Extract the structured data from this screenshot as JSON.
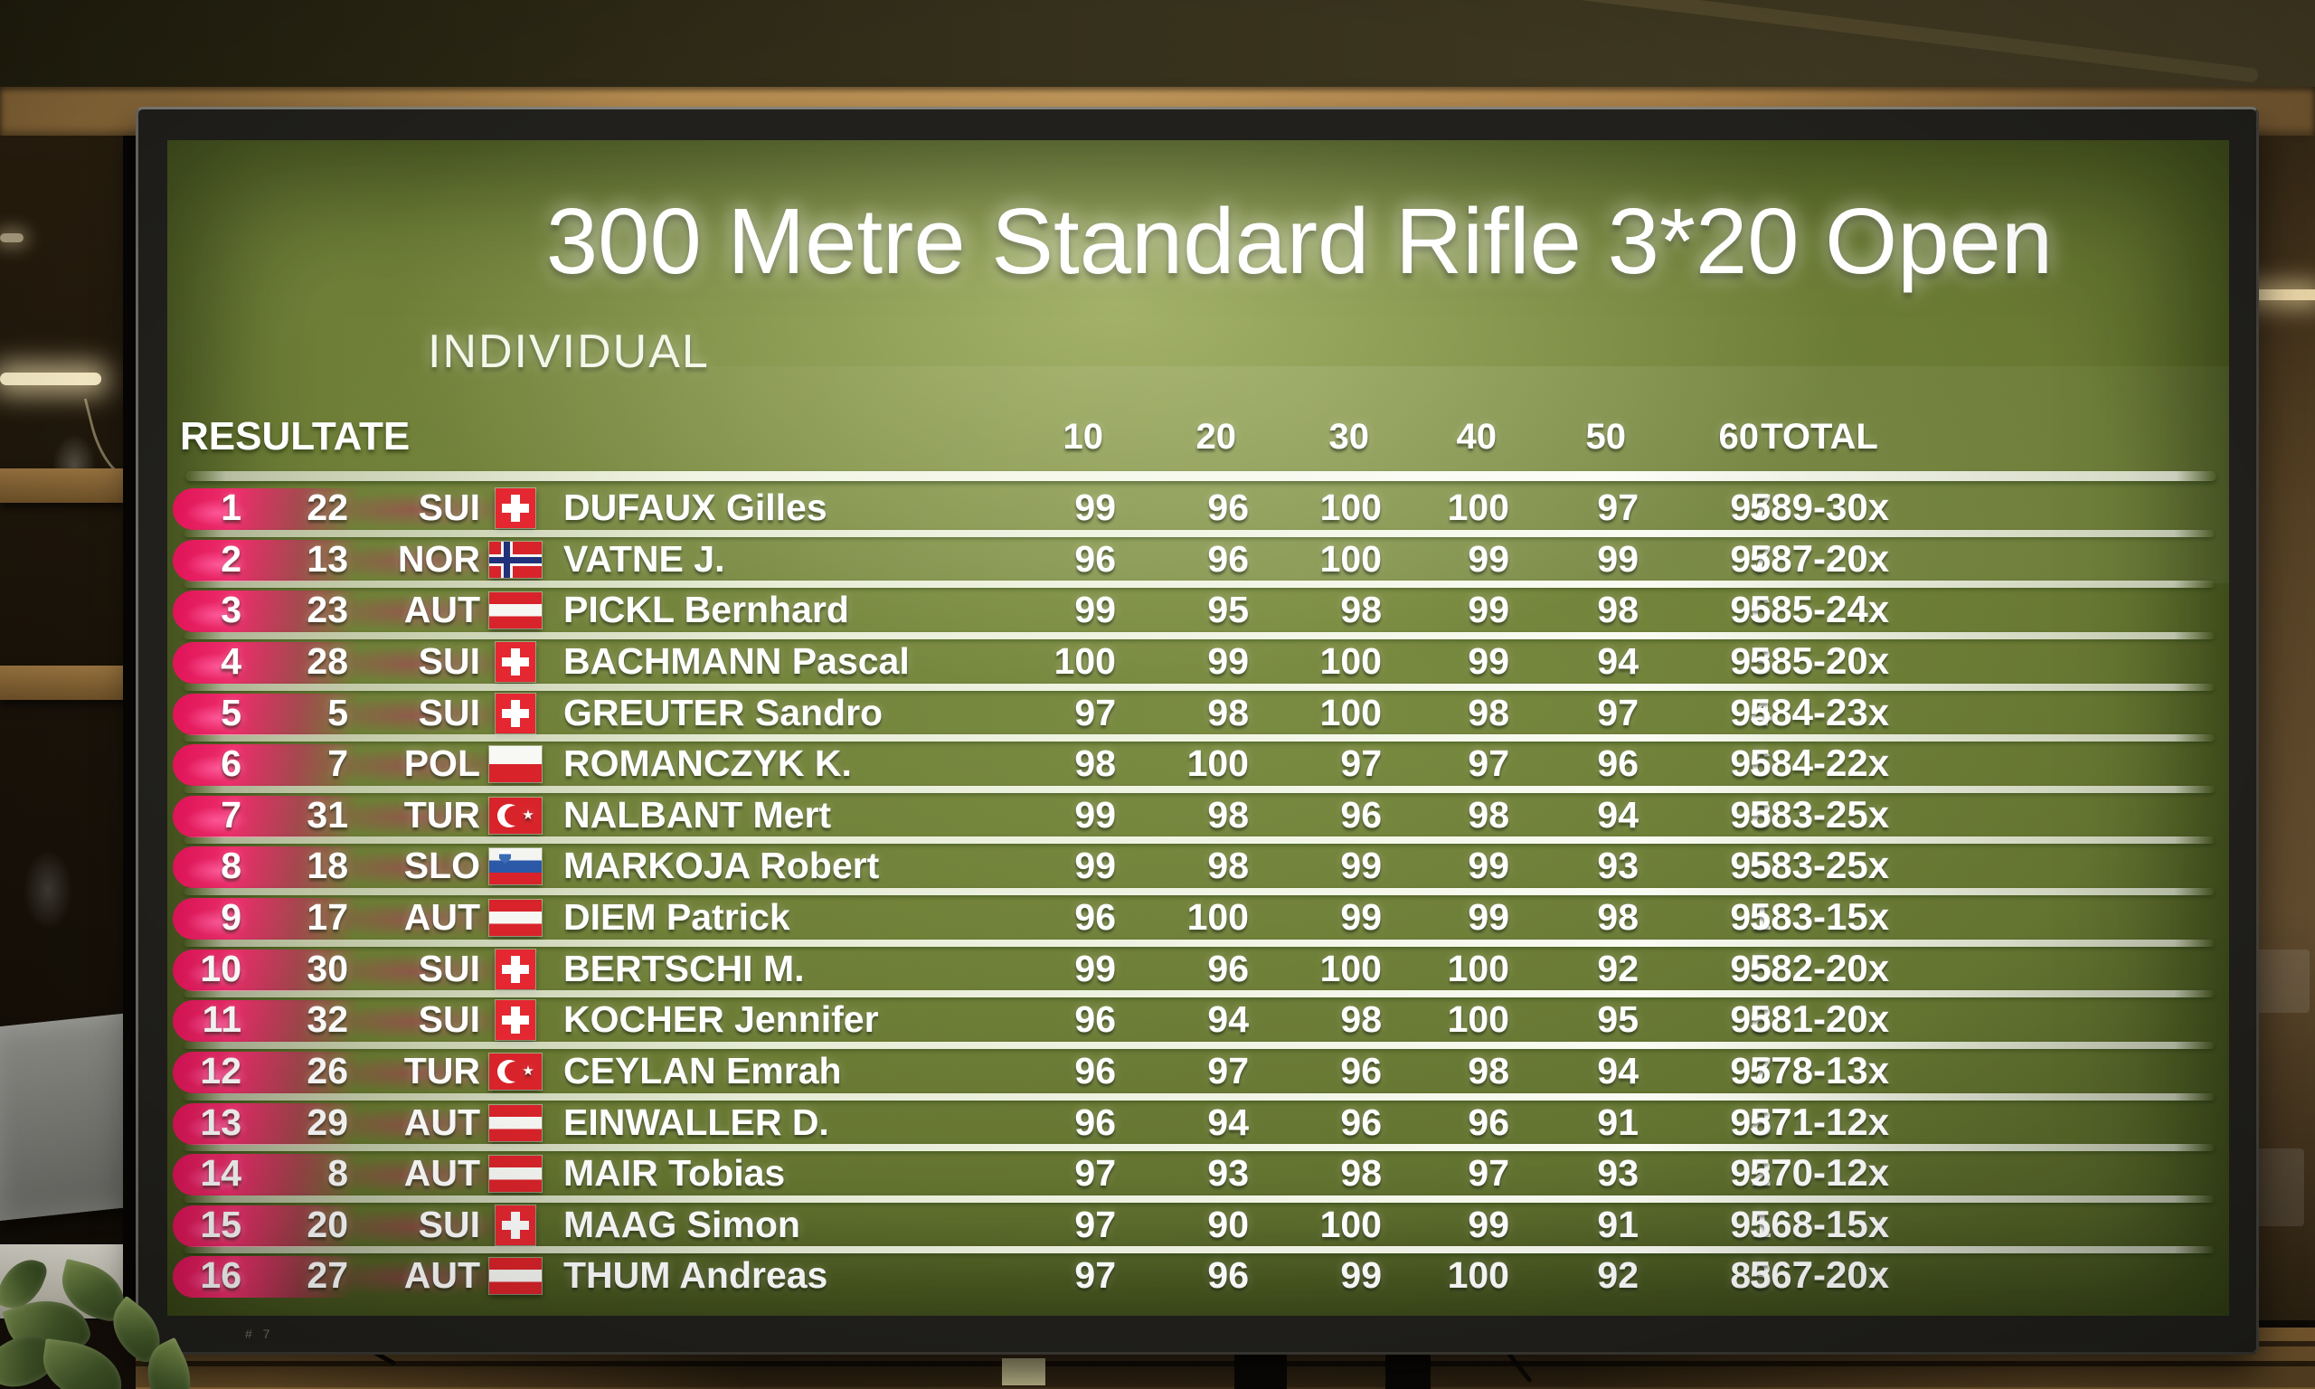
{
  "scene": {
    "tv_logo": "# 7"
  },
  "screen": {
    "title": "300 Metre Standard Rifle 3*20 Open",
    "subtitle": "INDIVIDUAL",
    "table": {
      "results_label": "RESULTATE",
      "series_headers": [
        "10",
        "20",
        "30",
        "40",
        "50",
        "60"
      ],
      "total_header": "TOTAL",
      "rows": [
        {
          "rank": "1",
          "bib": "22",
          "nation": "SUI",
          "flag": "sui",
          "name": "DUFAUX Gilles",
          "scores": [
            "99",
            "96",
            "100",
            "100",
            "97",
            "97"
          ],
          "total": "589-30x"
        },
        {
          "rank": "2",
          "bib": "13",
          "nation": "NOR",
          "flag": "nor",
          "name": "VATNE J.",
          "scores": [
            "96",
            "96",
            "100",
            "99",
            "99",
            "97"
          ],
          "total": "587-20x"
        },
        {
          "rank": "3",
          "bib": "23",
          "nation": "AUT",
          "flag": "aut",
          "name": "PICKL Bernhard",
          "scores": [
            "99",
            "95",
            "98",
            "99",
            "98",
            "96"
          ],
          "total": "585-24x"
        },
        {
          "rank": "4",
          "bib": "28",
          "nation": "SUI",
          "flag": "sui",
          "name": "BACHMANN Pascal",
          "scores": [
            "100",
            "99",
            "100",
            "99",
            "94",
            "93"
          ],
          "total": "585-20x"
        },
        {
          "rank": "5",
          "bib": "5",
          "nation": "SUI",
          "flag": "sui",
          "name": "GREUTER Sandro",
          "scores": [
            "97",
            "98",
            "100",
            "98",
            "97",
            "94"
          ],
          "total": "584-23x"
        },
        {
          "rank": "6",
          "bib": "7",
          "nation": "POL",
          "flag": "pol",
          "name": "ROMANCZYK K.",
          "scores": [
            "98",
            "100",
            "97",
            "97",
            "96",
            "96"
          ],
          "total": "584-22x"
        },
        {
          "rank": "7",
          "bib": "31",
          "nation": "TUR",
          "flag": "tur",
          "name": "NALBANT Mert",
          "scores": [
            "99",
            "98",
            "96",
            "98",
            "94",
            "98"
          ],
          "total": "583-25x"
        },
        {
          "rank": "8",
          "bib": "18",
          "nation": "SLO",
          "flag": "slo",
          "name": "MARKOJA Robert",
          "scores": [
            "99",
            "98",
            "99",
            "99",
            "93",
            "95"
          ],
          "total": "583-25x"
        },
        {
          "rank": "9",
          "bib": "17",
          "nation": "AUT",
          "flag": "aut",
          "name": "DIEM Patrick",
          "scores": [
            "96",
            "100",
            "99",
            "99",
            "98",
            "91"
          ],
          "total": "583-15x"
        },
        {
          "rank": "10",
          "bib": "30",
          "nation": "SUI",
          "flag": "sui",
          "name": "BERTSCHI M.",
          "scores": [
            "99",
            "96",
            "100",
            "100",
            "92",
            "95"
          ],
          "total": "582-20x"
        },
        {
          "rank": "11",
          "bib": "32",
          "nation": "SUI",
          "flag": "sui",
          "name": "KOCHER Jennifer",
          "scores": [
            "96",
            "94",
            "98",
            "100",
            "95",
            "98"
          ],
          "total": "581-20x"
        },
        {
          "rank": "12",
          "bib": "26",
          "nation": "TUR",
          "flag": "tur",
          "name": "CEYLAN Emrah",
          "scores": [
            "96",
            "97",
            "96",
            "98",
            "94",
            "97"
          ],
          "total": "578-13x"
        },
        {
          "rank": "13",
          "bib": "29",
          "nation": "AUT",
          "flag": "aut",
          "name": "EINWALLER D.",
          "scores": [
            "96",
            "94",
            "96",
            "96",
            "91",
            "98"
          ],
          "total": "571-12x"
        },
        {
          "rank": "14",
          "bib": "8",
          "nation": "AUT",
          "flag": "aut",
          "name": "MAIR Tobias",
          "scores": [
            "97",
            "93",
            "98",
            "97",
            "93",
            "92"
          ],
          "total": "570-12x"
        },
        {
          "rank": "15",
          "bib": "20",
          "nation": "SUI",
          "flag": "sui",
          "name": "MAAG Simon",
          "scores": [
            "97",
            "90",
            "100",
            "99",
            "91",
            "91"
          ],
          "total": "568-15x"
        },
        {
          "rank": "16",
          "bib": "27",
          "nation": "AUT",
          "flag": "aut",
          "name": "THUM Andreas",
          "scores": [
            "97",
            "96",
            "99",
            "100",
            "92",
            "83"
          ],
          "total": "567-20x"
        }
      ]
    }
  },
  "colors": {
    "screen_green": "#66762f",
    "accent_pink": "#ee2e6c",
    "separator_white": "#fafcf3",
    "flag_red": "#d8232a",
    "flag_blue_nor": "#21307a",
    "flag_blue_slo": "#2b59a8",
    "beam_wood": "#b98f52"
  }
}
